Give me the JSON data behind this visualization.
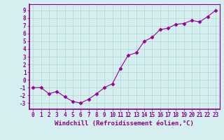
{
  "x": [
    0,
    1,
    2,
    3,
    4,
    5,
    6,
    7,
    8,
    9,
    10,
    11,
    12,
    13,
    14,
    15,
    16,
    17,
    18,
    19,
    20,
    21,
    22,
    23
  ],
  "y": [
    -1,
    -1,
    -1.8,
    -1.5,
    -2.2,
    -2.8,
    -3.0,
    -2.5,
    -1.8,
    -1,
    -0.5,
    1.5,
    3.2,
    3.5,
    5.0,
    5.5,
    6.5,
    6.7,
    7.2,
    7.3,
    7.7,
    7.5,
    8.2,
    9.0
  ],
  "line_color": "#990099",
  "marker": "D",
  "markersize": 2.5,
  "linewidth": 0.8,
  "bg_color": "#d5eef0",
  "grid_color": "#b0d8cc",
  "plot_bg": "#d5eef0",
  "xlabel": "Windchill (Refroidissement éolien,°C)",
  "xlabel_fontsize": 6.5,
  "ylabel_ticks": [
    -3,
    -2,
    -1,
    0,
    1,
    2,
    3,
    4,
    5,
    6,
    7,
    8,
    9
  ],
  "xtick_labels": [
    "0",
    "1",
    "2",
    "3",
    "4",
    "5",
    "6",
    "7",
    "8",
    "9",
    "10",
    "11",
    "12",
    "13",
    "14",
    "15",
    "16",
    "17",
    "18",
    "19",
    "20",
    "21",
    "22",
    "23"
  ],
  "ylim": [
    -3.8,
    9.8
  ],
  "xlim": [
    -0.5,
    23.5
  ],
  "tick_fontsize": 5.5,
  "label_color": "#880088",
  "spine_color": "#880088"
}
